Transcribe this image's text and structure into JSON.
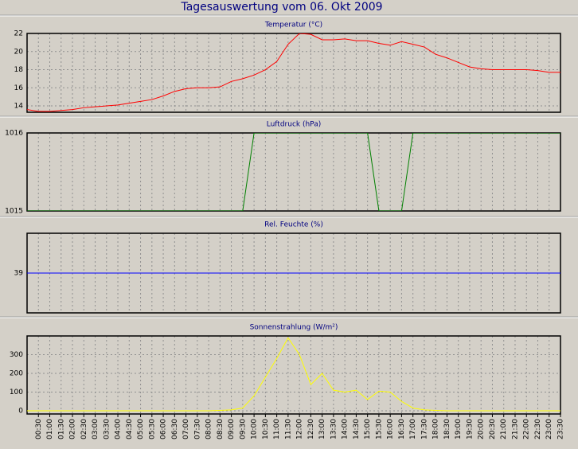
{
  "title": "Tagesauswertung vom 06. Okt 2009",
  "chart_data": [
    {
      "type": "line",
      "title": "Temperatur (°C)",
      "color": "#ff0000",
      "values": [
        13.6,
        13.4,
        13.4,
        13.5,
        13.6,
        13.8,
        13.9,
        14.0,
        14.1,
        14.3,
        14.5,
        14.7,
        15.1,
        15.6,
        15.9,
        16.0,
        16.0,
        16.1,
        16.7,
        17.0,
        17.4,
        18.0,
        18.9,
        20.8,
        22.0,
        21.9,
        21.3,
        21.3,
        21.4,
        21.2,
        21.2,
        20.9,
        20.7,
        21.1,
        20.8,
        20.5,
        19.7,
        19.3,
        18.8,
        18.3,
        18.1,
        18.0,
        18.0,
        18.0,
        18.0,
        17.9,
        17.7,
        17.7
      ],
      "ylim": [
        13.3,
        22
      ],
      "yticks": [
        14,
        16,
        18,
        20,
        22
      ]
    },
    {
      "type": "line",
      "title": "Luftdruck (hPa)",
      "color": "#008000",
      "values": [
        1015,
        1015,
        1015,
        1015,
        1015,
        1015,
        1015,
        1015,
        1015,
        1015,
        1015,
        1015,
        1015,
        1015,
        1015,
        1015,
        1015,
        1015,
        1015,
        1015,
        1016,
        1016,
        1016,
        1016,
        1016,
        1016,
        1016,
        1016,
        1016,
        1016,
        1016,
        1015,
        1015,
        1015,
        1016,
        1016,
        1016,
        1016,
        1016,
        1016,
        1016,
        1016,
        1016,
        1016,
        1016,
        1016,
        1016,
        1016
      ],
      "ylim": [
        1015,
        1016
      ],
      "yticks": [
        1015,
        1016
      ]
    },
    {
      "type": "line",
      "title": "Rel. Feuchte (%)",
      "color": "#0000ff",
      "values": [
        39,
        39,
        39,
        39,
        39,
        39,
        39,
        39,
        39,
        39,
        39,
        39,
        39,
        39,
        39,
        39,
        39,
        39,
        39,
        39,
        39,
        39,
        39,
        39,
        39,
        39,
        39,
        39,
        39,
        39,
        39,
        39,
        39,
        39,
        39,
        39,
        39,
        39,
        39,
        39,
        39,
        39,
        39,
        39,
        39,
        39,
        39,
        39
      ],
      "ylim": [
        38,
        40
      ],
      "yticks": [
        39
      ]
    },
    {
      "type": "line",
      "title": "Sonnenstrahlung (W/m²)",
      "color": "#ffff00",
      "categories": [
        null,
        "00:30",
        "01:00",
        "01:30",
        "02:00",
        "02:30",
        "03:00",
        "03:30",
        "04:00",
        "04:30",
        "05:00",
        "05:30",
        "06:00",
        "06:30",
        "07:00",
        "07:30",
        "08:00",
        "08:30",
        "09:00",
        "09:30",
        "10:00",
        "10:30",
        "11:00",
        "11:30",
        "12:00",
        "12:30",
        "13:00",
        "13:30",
        "14:00",
        "14:30",
        "15:00",
        "15:30",
        "16:00",
        "16:30",
        "17:00",
        "17:30",
        "18:00",
        "18:30",
        "19:00",
        "19:30",
        "20:00",
        "20:30",
        "21:00",
        "21:30",
        "22:00",
        "22:30",
        "23:00",
        "23:30"
      ],
      "values": [
        0,
        0,
        0,
        0,
        0,
        0,
        0,
        0,
        0,
        0,
        0,
        0,
        0,
        0,
        0,
        0,
        0,
        2,
        5,
        15,
        80,
        180,
        280,
        390,
        300,
        140,
        200,
        110,
        100,
        110,
        60,
        105,
        100,
        50,
        15,
        5,
        2,
        0,
        0,
        0,
        0,
        0,
        0,
        0,
        0,
        0,
        0,
        0
      ],
      "ylim": [
        -17,
        400
      ],
      "yticks": [
        0,
        100,
        200,
        300
      ]
    }
  ]
}
